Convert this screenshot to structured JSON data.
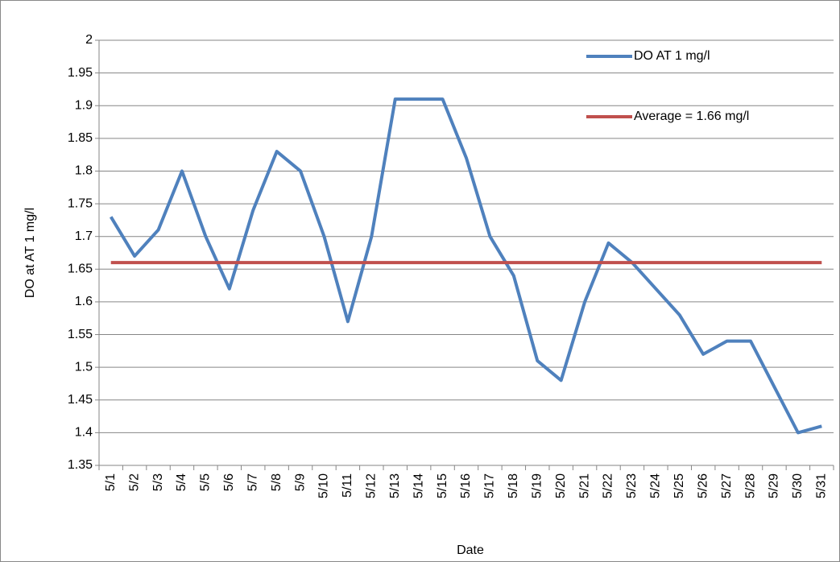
{
  "chart_data": {
    "type": "line",
    "x_label": "Date",
    "y_label": "DO at AT 1 mg/l",
    "categories": [
      "5/1",
      "5/2",
      "5/3",
      "5/4",
      "5/5",
      "5/6",
      "5/7",
      "5/8",
      "5/9",
      "5/10",
      "5/11",
      "5/12",
      "5/13",
      "5/14",
      "5/15",
      "5/16",
      "5/17",
      "5/18",
      "5/19",
      "5/20",
      "5/21",
      "5/22",
      "5/23",
      "5/24",
      "5/25",
      "5/26",
      "5/27",
      "5/28",
      "5/29",
      "5/30",
      "5/31"
    ],
    "series": [
      {
        "name": "DO AT 1 mg/l",
        "color": "#4f81bd",
        "values": [
          1.73,
          1.67,
          1.71,
          1.8,
          1.7,
          1.62,
          1.74,
          1.83,
          1.8,
          1.7,
          1.57,
          1.7,
          1.91,
          1.91,
          1.91,
          1.82,
          1.7,
          1.64,
          1.51,
          1.48,
          1.6,
          1.69,
          1.66,
          1.62,
          1.58,
          1.52,
          1.54,
          1.54,
          1.47,
          1.4,
          1.41
        ]
      },
      {
        "name": "Average = 1.66 mg/l",
        "color": "#c0504d",
        "values": [
          1.66,
          1.66,
          1.66,
          1.66,
          1.66,
          1.66,
          1.66,
          1.66,
          1.66,
          1.66,
          1.66,
          1.66,
          1.66,
          1.66,
          1.66,
          1.66,
          1.66,
          1.66,
          1.66,
          1.66,
          1.66,
          1.66,
          1.66,
          1.66,
          1.66,
          1.66,
          1.66,
          1.66,
          1.66,
          1.66,
          1.66
        ]
      }
    ],
    "ylim": [
      1.35,
      2
    ],
    "yticks": [
      1.35,
      1.4,
      1.45,
      1.5,
      1.55,
      1.6,
      1.65,
      1.7,
      1.75,
      1.8,
      1.85,
      1.9,
      1.95,
      2
    ],
    "grid": true,
    "legend": "top-right"
  }
}
